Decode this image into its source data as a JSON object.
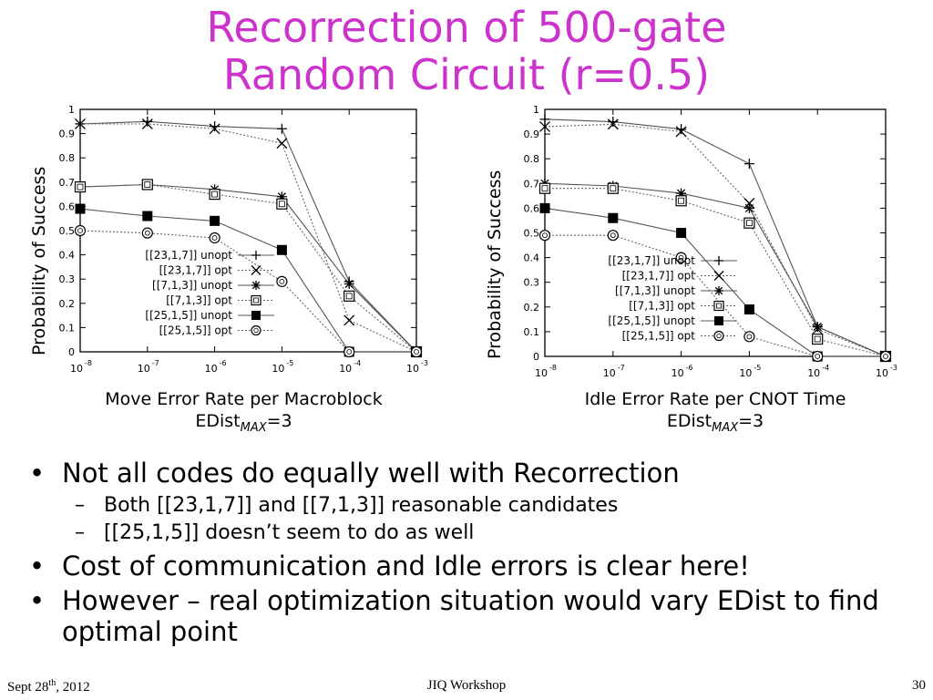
{
  "slide": {
    "title_line1": "Recorrection of 500-gate",
    "title_line2": "Random Circuit (r=0.5)"
  },
  "chart_data": [
    {
      "type": "line",
      "ylabel": "Probability of Success",
      "xlabel": "Move Error Rate per Macroblock",
      "subcaption_prefix": "EDist",
      "subcaption_sub": "MAX",
      "subcaption_suffix": "=3",
      "x": [
        1e-08,
        1e-07,
        1e-06,
        1e-05,
        0.0001,
        0.001
      ],
      "x_ticks": [
        {
          "b": "10",
          "e": "-8"
        },
        {
          "b": "10",
          "e": "-7"
        },
        {
          "b": "10",
          "e": "-6"
        },
        {
          "b": "10",
          "e": "-5"
        },
        {
          "b": "10",
          "e": "-4"
        },
        {
          "b": "10",
          "e": "-3"
        }
      ],
      "x_scale": "log",
      "ylim": [
        0,
        1
      ],
      "y_ticks": [
        "0",
        "0.1",
        "0.2",
        "0.3",
        "0.4",
        "0.5",
        "0.6",
        "0.7",
        "0.8",
        "0.9",
        "1"
      ],
      "legend_position": "bottom-center",
      "series": [
        {
          "name": "[[23,1,7]] unopt",
          "marker": "plus",
          "dashed": false,
          "values": [
            0.94,
            0.95,
            0.93,
            0.92,
            0.29,
            0.0
          ]
        },
        {
          "name": "[[23,1,7]] opt",
          "marker": "cross",
          "dashed": true,
          "values": [
            0.94,
            0.94,
            0.92,
            0.86,
            0.13,
            0.0
          ]
        },
        {
          "name": "[[7,1,3]] unopt",
          "marker": "star",
          "dashed": false,
          "values": [
            0.68,
            0.69,
            0.67,
            0.64,
            0.28,
            0.0
          ]
        },
        {
          "name": "[[7,1,3]] opt",
          "marker": "square-open",
          "dashed": true,
          "values": [
            0.68,
            0.69,
            0.65,
            0.61,
            0.23,
            0.0
          ]
        },
        {
          "name": "[[25,1,5]] unopt",
          "marker": "square-filled",
          "dashed": false,
          "values": [
            0.59,
            0.56,
            0.54,
            0.42,
            0.0,
            0.0
          ]
        },
        {
          "name": "[[25,1,5]] opt",
          "marker": "circle-open",
          "dashed": true,
          "values": [
            0.5,
            0.49,
            0.47,
            0.29,
            0.0,
            0.0
          ]
        }
      ]
    },
    {
      "type": "line",
      "ylabel": "Probability of Success",
      "xlabel": "Idle Error Rate per CNOT Time",
      "subcaption_prefix": "EDist",
      "subcaption_sub": "MAX",
      "subcaption_suffix": "=3",
      "x": [
        1e-08,
        1e-07,
        1e-06,
        1e-05,
        0.0001,
        0.001
      ],
      "x_ticks": [
        {
          "b": "10",
          "e": "-8"
        },
        {
          "b": "10",
          "e": "-7"
        },
        {
          "b": "10",
          "e": "-6"
        },
        {
          "b": "10",
          "e": "-5"
        },
        {
          "b": "10",
          "e": "-4"
        },
        {
          "b": "10",
          "e": "-3"
        }
      ],
      "x_scale": "log",
      "ylim": [
        0,
        1
      ],
      "y_ticks": [
        "0",
        "0.1",
        "0.2",
        "0.3",
        "0.4",
        "0.5",
        "0.6",
        "0.7",
        "0.8",
        "0.9",
        "1"
      ],
      "legend_position": "bottom-center",
      "series": [
        {
          "name": "[[23,1,7]] unopt",
          "marker": "plus",
          "dashed": false,
          "values": [
            0.96,
            0.95,
            0.92,
            0.78,
            0.12,
            0.0
          ]
        },
        {
          "name": "[[23,1,7]] opt",
          "marker": "cross",
          "dashed": true,
          "values": [
            0.93,
            0.94,
            0.91,
            0.62,
            0.11,
            0.0
          ]
        },
        {
          "name": "[[7,1,3]] unopt",
          "marker": "star",
          "dashed": false,
          "values": [
            0.7,
            0.69,
            0.66,
            0.6,
            0.12,
            0.0
          ]
        },
        {
          "name": "[[7,1,3]] opt",
          "marker": "square-open",
          "dashed": true,
          "values": [
            0.68,
            0.68,
            0.63,
            0.54,
            0.07,
            0.0
          ]
        },
        {
          "name": "[[25,1,5]] unopt",
          "marker": "square-filled",
          "dashed": false,
          "values": [
            0.6,
            0.56,
            0.5,
            0.19,
            0.0,
            0.0
          ]
        },
        {
          "name": "[[25,1,5]] opt",
          "marker": "circle-open",
          "dashed": true,
          "values": [
            0.49,
            0.49,
            0.4,
            0.08,
            0.0,
            0.0
          ]
        }
      ]
    }
  ],
  "bullets": [
    {
      "text": "Not all codes do equally well with Recorrection",
      "sub": [
        "Both [[23,1,7]] and [[7,1,3]] reasonable candidates",
        "[[25,1,5]] doesn’t seem to do as well"
      ]
    },
    {
      "text": "Cost of communication and Idle errors is clear here!",
      "sub": []
    },
    {
      "text": "However – real optimization situation would vary EDist to find optimal point",
      "sub": []
    }
  ],
  "footer": {
    "date_prefix": "Sept 28",
    "date_sup": "th",
    "date_suffix": ", 2012",
    "center": "JIQ Workshop",
    "page": "30"
  }
}
